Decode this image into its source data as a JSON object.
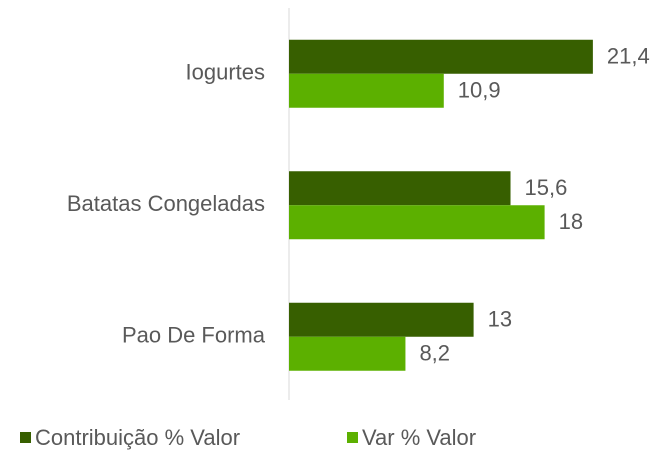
{
  "chart_data": {
    "type": "hbar",
    "categories": [
      "Iogurtes",
      "Batatas Congeladas",
      "Pao De Forma"
    ],
    "series": [
      {
        "name": "Contribuição % Valor",
        "color": "#375f00",
        "values": [
          21.4,
          15.6,
          13
        ],
        "value_labels": [
          "21,4",
          "15,6",
          "13"
        ]
      },
      {
        "name": "Var % Valor",
        "color": "#5cb000",
        "values": [
          10.9,
          18,
          8.2
        ],
        "value_labels": [
          "10,9",
          "18",
          "8,2"
        ]
      }
    ],
    "xlim": [
      0,
      25
    ],
    "legend": "bottom"
  }
}
